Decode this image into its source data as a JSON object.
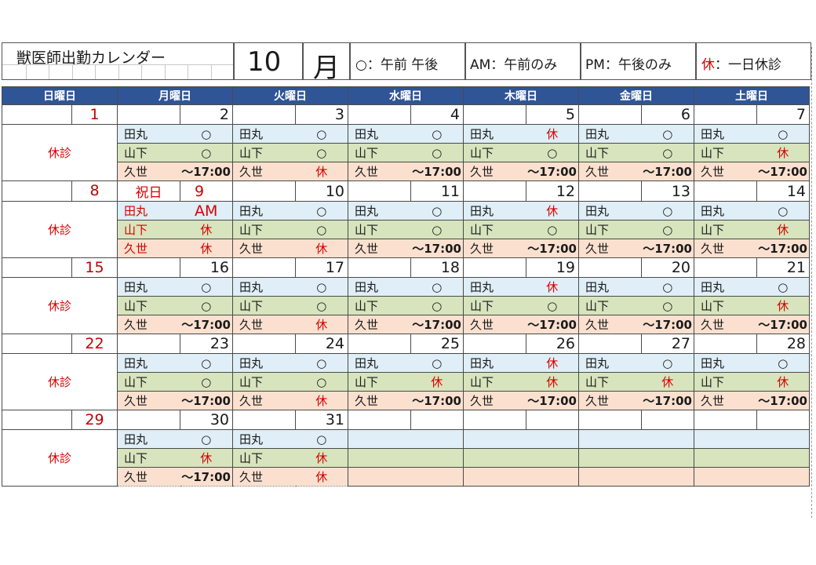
{
  "title": "獣医師出勤カレンダー",
  "month_number": "10",
  "month_kanji": "月",
  "legend": {
    "circle": "○：午前 午後",
    "am": "AM：午前のみ",
    "pm": "PM：午後のみ",
    "kyu_char": "休",
    "kyu_text": "：一日休診"
  },
  "weekdays": [
    "日曜日",
    "月曜日",
    "火曜日",
    "水曜日",
    "木曜日",
    "金曜日",
    "土曜日"
  ],
  "doctors": [
    "田丸",
    "山下",
    "久世"
  ],
  "sunday_closed": "休診",
  "holiday_label": "祝日",
  "weeks": [
    {
      "dates": [
        "1",
        "2",
        "3",
        "4",
        "5",
        "6",
        "7"
      ],
      "sun_label": "休診",
      "mon_holiday": "",
      "shifts": [
        [
          [
            "○",
            "○",
            "○",
            "休",
            "○",
            "○"
          ],
          [
            "○",
            "○",
            "○",
            "○",
            "○",
            "休"
          ],
          [
            "～17:00",
            "休",
            "～17:00",
            "～17:00",
            "～17:00",
            "～17:00"
          ]
        ]
      ]
    },
    {
      "dates": [
        "8",
        "9",
        "10",
        "11",
        "12",
        "13",
        "14"
      ],
      "sun_label": "休診",
      "mon_holiday": "祝日",
      "shifts": [
        [
          [
            "AM",
            "○",
            "○",
            "休",
            "○",
            "○"
          ],
          [
            "休",
            "○",
            "○",
            "○",
            "○",
            "休"
          ],
          [
            "休",
            "休",
            "～17:00",
            "～17:00",
            "～17:00",
            "～17:00"
          ]
        ]
      ]
    },
    {
      "dates": [
        "15",
        "16",
        "17",
        "18",
        "19",
        "20",
        "21"
      ],
      "sun_label": "休診",
      "mon_holiday": "",
      "shifts": [
        [
          [
            "○",
            "○",
            "○",
            "休",
            "○",
            "○"
          ],
          [
            "○",
            "○",
            "○",
            "○",
            "○",
            "休"
          ],
          [
            "～17:00",
            "休",
            "～17:00",
            "～17:00",
            "～17:00",
            "～17:00"
          ]
        ]
      ]
    },
    {
      "dates": [
        "22",
        "23",
        "24",
        "25",
        "26",
        "27",
        "28"
      ],
      "sun_label": "休診",
      "mon_holiday": "",
      "shifts": [
        [
          [
            "○",
            "○",
            "○",
            "休",
            "○",
            "○"
          ],
          [
            "○",
            "○",
            "休",
            "休",
            "休",
            "休"
          ],
          [
            "～17:00",
            "休",
            "～17:00",
            "～17:00",
            "～17:00",
            "～17:00"
          ]
        ]
      ]
    },
    {
      "dates": [
        "29",
        "30",
        "31",
        "",
        "",
        "",
        ""
      ],
      "sun_label": "休診",
      "mon_holiday": "",
      "shifts": [
        [
          [
            "○",
            "○",
            "",
            "",
            "",
            ""
          ],
          [
            "休",
            "休",
            "",
            "",
            "",
            ""
          ],
          [
            "～17:00",
            "休",
            "",
            "",
            "",
            ""
          ]
        ]
      ]
    }
  ]
}
